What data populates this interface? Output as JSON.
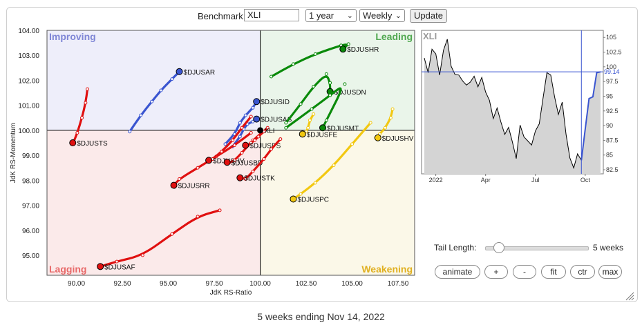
{
  "toolbar": {
    "benchmark_label": "Benchmark:",
    "benchmark_value": "XLI",
    "period_value": "1 year",
    "frequency_value": "Weekly",
    "update_label": "Update"
  },
  "chart_data": [
    {
      "type": "scatter",
      "subtype": "relative-rotation-graph",
      "xlabel": "JdK RS-Ratio",
      "ylabel": "JdK RS-Momentum",
      "xlim": [
        88.4,
        108.4
      ],
      "ylim": [
        94.2,
        104.0
      ],
      "x_ticks": [
        "90.00",
        "92.50",
        "95.00",
        "97.50",
        "100.00",
        "102.50",
        "105.00",
        "107.50"
      ],
      "y_ticks": [
        "95.00",
        "96.00",
        "97.00",
        "98.00",
        "99.00",
        "100.00",
        "101.00",
        "102.00",
        "103.00",
        "104.00"
      ],
      "center": [
        100,
        100
      ],
      "quadrants": [
        {
          "name": "Improving",
          "color": "#7f86d6",
          "bg": "#eeeefa",
          "position": "top-left"
        },
        {
          "name": "Leading",
          "color": "#50a850",
          "bg": "#eaf5ea",
          "position": "top-right"
        },
        {
          "name": "Lagging",
          "color": "#e86a6a",
          "bg": "#fbeaea",
          "position": "bottom-left"
        },
        {
          "name": "Weakening",
          "color": "#e0b020",
          "bg": "#fbf8e8",
          "position": "bottom-right"
        }
      ],
      "benchmark": {
        "name": "XLI",
        "x": 100.0,
        "y": 100.0,
        "color": "#000000"
      },
      "series": [
        {
          "name": "$DJUSAR",
          "color": "#3a55d0",
          "points": [
            [
              92.9,
              99.95
            ],
            [
              93.5,
              100.6
            ],
            [
              94.1,
              101.15
            ],
            [
              94.6,
              101.6
            ],
            [
              95.2,
              102.05
            ],
            [
              95.6,
              102.35
            ]
          ]
        },
        {
          "name": "$DJUSID",
          "color": "#3a55d0",
          "points": [
            [
              98.1,
              99.45
            ],
            [
              98.6,
              99.85
            ],
            [
              98.9,
              100.3
            ],
            [
              99.2,
              100.6
            ],
            [
              99.6,
              100.9
            ],
            [
              99.8,
              101.15
            ]
          ]
        },
        {
          "name": "$DJUSAS",
          "color": "#3a55d0",
          "points": [
            [
              98.5,
              99.35
            ],
            [
              98.9,
              99.75
            ],
            [
              99.1,
              100.05
            ],
            [
              99.3,
              100.25
            ],
            [
              99.6,
              100.35
            ],
            [
              99.8,
              100.45
            ]
          ]
        },
        {
          "name": "$DJUSTS",
          "color": "#e01010",
          "points": [
            [
              90.6,
              101.65
            ],
            [
              90.5,
              101.1
            ],
            [
              90.3,
              100.5
            ],
            [
              90.05,
              99.9
            ],
            [
              89.8,
              99.45
            ],
            [
              89.8,
              99.5
            ]
          ]
        },
        {
          "name": "$DJUSRR",
          "color": "#e01010",
          "points": [
            [
              99.5,
              99.9
            ],
            [
              98.6,
              99.4
            ],
            [
              97.6,
              98.95
            ],
            [
              96.6,
              98.5
            ],
            [
              95.6,
              98.05
            ],
            [
              95.3,
              97.8
            ]
          ]
        },
        {
          "name": "$DJUSHV",
          "color": "#e01010",
          "points": [
            [
              99.5,
              100.55
            ],
            [
              99.0,
              100.1
            ],
            [
              98.5,
              99.6
            ],
            [
              97.9,
              99.15
            ],
            [
              97.4,
              98.85
            ],
            [
              97.2,
              98.8
            ]
          ]
        },
        {
          "name": "$DJUSBD",
          "color": "#e01010",
          "points": [
            [
              100.4,
              100.1
            ],
            [
              99.6,
              99.6
            ],
            [
              99.0,
              99.1
            ],
            [
              98.6,
              98.8
            ],
            [
              98.3,
              98.7
            ],
            [
              98.2,
              98.72
            ]
          ]
        },
        {
          "name": "$DJUSPS",
          "color": "#e01010",
          "points": [
            [
              100.2,
              99.95
            ],
            [
              99.9,
              99.75
            ],
            [
              99.7,
              99.6
            ],
            [
              99.5,
              99.5
            ],
            [
              99.3,
              99.4
            ],
            [
              99.2,
              99.4
            ]
          ]
        },
        {
          "name": "$DJUSTK",
          "color": "#e01010",
          "points": [
            [
              101.1,
              99.65
            ],
            [
              100.6,
              99.25
            ],
            [
              100.2,
              98.85
            ],
            [
              99.6,
              98.35
            ],
            [
              99.2,
              98.05
            ],
            [
              98.9,
              98.1
            ]
          ]
        },
        {
          "name": "$DJUSAF",
          "color": "#e01010",
          "points": [
            [
              97.8,
              96.8
            ],
            [
              96.6,
              96.55
            ],
            [
              95.2,
              95.85
            ],
            [
              93.6,
              95.0
            ],
            [
              92.2,
              94.75
            ],
            [
              91.3,
              94.55
            ]
          ]
        },
        {
          "name": "$DJUSHR",
          "color": "#0a8a0a",
          "points": [
            [
              100.6,
              102.15
            ],
            [
              101.8,
              102.65
            ],
            [
              103.0,
              103.05
            ],
            [
              104.4,
              103.4
            ],
            [
              104.8,
              103.45
            ],
            [
              104.5,
              103.25
            ]
          ]
        },
        {
          "name": "$DJUSDN",
          "color": "#0a8a0a",
          "points": [
            [
              101.4,
              100.3
            ],
            [
              102.2,
              101.05
            ],
            [
              102.9,
              101.75
            ],
            [
              103.6,
              102.25
            ],
            [
              103.8,
              101.9
            ],
            [
              103.8,
              101.55
            ]
          ]
        },
        {
          "name": "$DJUSMT",
          "color": "#0a8a0a",
          "points": [
            [
              101.4,
              100.1
            ],
            [
              102.8,
              100.85
            ],
            [
              103.8,
              101.4
            ],
            [
              104.6,
              101.85
            ],
            [
              103.6,
              100.4
            ],
            [
              103.4,
              100.1
            ]
          ]
        },
        {
          "name": "$DJUSFE",
          "color": "#f2c811",
          "points": [
            [
              102.9,
              100.65
            ],
            [
              102.7,
              100.4
            ],
            [
              102.6,
              100.1
            ],
            [
              102.5,
              99.95
            ],
            [
              102.4,
              99.9
            ],
            [
              102.3,
              99.85
            ]
          ]
        },
        {
          "name": "$DJUSHV",
          "color": "#f2c811",
          "points": [
            [
              107.2,
              100.85
            ],
            [
              107.1,
              100.5
            ],
            [
              106.8,
              100.1
            ],
            [
              106.5,
              99.85
            ],
            [
              106.3,
              99.7
            ],
            [
              106.4,
              99.7
            ]
          ]
        },
        {
          "name": "$DJUSPC",
          "color": "#f2c811",
          "points": [
            [
              106.0,
              100.3
            ],
            [
              105.0,
              99.45
            ],
            [
              104.0,
              98.6
            ],
            [
              103.0,
              97.9
            ],
            [
              102.2,
              97.45
            ],
            [
              101.8,
              97.25
            ]
          ]
        }
      ]
    },
    {
      "type": "area",
      "title": "XLI",
      "x_ticks": [
        "2022",
        "Apr",
        "Jul",
        "Oct"
      ],
      "y_ticks": [
        "105",
        "102.5",
        "100",
        "97.5",
        "95",
        "92.5",
        "90",
        "87.5",
        "85",
        "82.5"
      ],
      "ylim": [
        81.8,
        106.2
      ],
      "current_value": 99.14,
      "current_label": "99.14",
      "values": [
        101.5,
        99.0,
        103.0,
        102.2,
        98.6,
        102.8,
        104.7,
        100.1,
        98.7,
        98.6,
        97.6,
        96.9,
        97.4,
        98.4,
        96.6,
        98.2,
        95.7,
        94.3,
        91.2,
        93.0,
        90.6,
        88.5,
        89.7,
        87.2,
        84.4,
        90.1,
        88.1,
        87.4,
        86.7,
        89.1,
        90.3,
        94.7,
        99.0,
        98.6,
        94.9,
        91.9,
        94.0,
        88.5,
        84.5,
        82.8,
        85.2,
        84.1,
        89.4,
        94.6,
        94.9,
        99.0,
        99.14
      ],
      "highlight_from_index": 41,
      "line_color": "#000000",
      "highlight_color": "#3a55d0"
    }
  ],
  "controls": {
    "tail_label": "Tail Length:",
    "tail_value_text": "5 weeks",
    "tail_weeks": 5,
    "buttons": [
      "animate",
      "+",
      "-",
      "fit",
      "ctr",
      "max"
    ]
  },
  "footer": {
    "text": "5 weeks ending Nov 14, 2022"
  }
}
